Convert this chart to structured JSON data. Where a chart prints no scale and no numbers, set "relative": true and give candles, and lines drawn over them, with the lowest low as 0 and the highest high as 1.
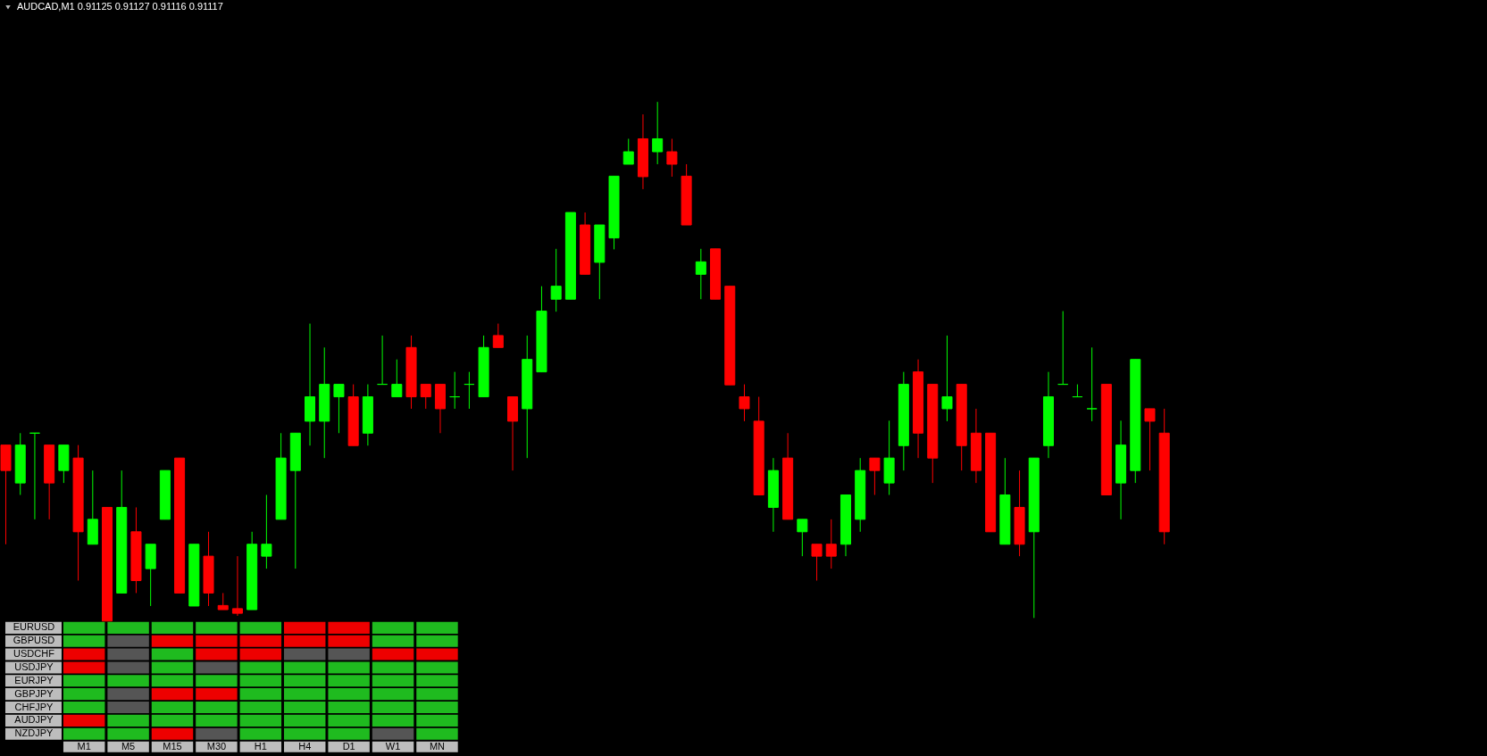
{
  "chart_data": [
    {
      "type": "candlestick",
      "title": "AUDCAD,M1  0.91125 0.91127 0.91116 0.91117",
      "relative": true,
      "colors": [
        "#ff0000",
        "#00ff00",
        "#00ff00",
        "#ff0000",
        "#00ff00",
        "#ff0000",
        "#00ff00",
        "#ff0000",
        "#00ff00",
        "#ff0000",
        "#00ff00",
        "#00ff00",
        "#ff0000",
        "#00ff00",
        "#ff0000",
        "#ff0000",
        "#ff0000",
        "#00ff00",
        "#00ff00",
        "#00ff00",
        "#00ff00",
        "#00ff00",
        "#00ff00",
        "#00ff00",
        "#ff0000",
        "#00ff00",
        "#00ff00",
        "#00ff00",
        "#ff0000",
        "#ff0000",
        "#ff0000",
        "#00ff00",
        "#00ff00",
        "#00ff00",
        "#ff0000",
        "#ff0000",
        "#00ff00",
        "#00ff00",
        "#00ff00",
        "#00ff00",
        "#ff0000",
        "#00ff00",
        "#00ff00",
        "#00ff00",
        "#ff0000",
        "#00ff00",
        "#ff0000",
        "#ff0000",
        "#00ff00",
        "#ff0000",
        "#ff0000",
        "#ff0000",
        "#ff0000",
        "#00ff00",
        "#ff0000",
        "#00ff00",
        "#ff0000",
        "#ff0000",
        "#00ff00",
        "#00ff00",
        "#ff0000",
        "#00ff00",
        "#00ff00",
        "#ff0000",
        "#ff0000",
        "#00ff00",
        "#ff0000",
        "#ff0000",
        "#ff0000",
        "#00ff00",
        "#ff0000",
        "#00ff00",
        "#00ff00",
        "#00ff00",
        "#00ff00",
        "#00ff00",
        "#ff0000",
        "#00ff00",
        "#00ff00",
        "#ff0000",
        "#ff0000"
      ],
      "categories": [
        null,
        null,
        null,
        null,
        null,
        null,
        null,
        null,
        null,
        null,
        null,
        null,
        null,
        null,
        null,
        null,
        null,
        null,
        null,
        null,
        null,
        null,
        null,
        null,
        null,
        null,
        null,
        null,
        null,
        null,
        null,
        null,
        null,
        null,
        null,
        null,
        null,
        null,
        null,
        null,
        null,
        null,
        null,
        null,
        null,
        null,
        null,
        null,
        null,
        null,
        null,
        null,
        null,
        null,
        null,
        null,
        null,
        null,
        null,
        null,
        null,
        null,
        null,
        null,
        null,
        null,
        null,
        null,
        null,
        null,
        null,
        null,
        null,
        null,
        null,
        null,
        null,
        null,
        null,
        null,
        null
      ],
      "ohlc": [
        [
          0.339,
          0.339,
          0.148,
          0.29
        ],
        [
          0.266,
          0.362,
          0.243,
          0.339
        ],
        [
          0.362,
          0.362,
          0.196,
          0.362
        ],
        [
          0.339,
          0.339,
          0.196,
          0.266
        ],
        [
          0.29,
          0.339,
          0.266,
          0.339
        ],
        [
          0.314,
          0.339,
          0.078,
          0.172
        ],
        [
          0.148,
          0.29,
          0.148,
          0.196
        ],
        [
          0.219,
          0.219,
          0.0,
          0.0
        ],
        [
          0.054,
          0.29,
          0.054,
          0.219
        ],
        [
          0.172,
          0.219,
          0.054,
          0.078
        ],
        [
          0.101,
          0.148,
          0.029,
          0.148
        ],
        [
          0.196,
          0.29,
          0.196,
          0.29
        ],
        [
          0.314,
          0.314,
          0.054,
          0.054
        ],
        [
          0.029,
          0.148,
          0.029,
          0.148
        ],
        [
          0.125,
          0.172,
          0.029,
          0.054
        ],
        [
          0.03,
          0.054,
          0.022,
          0.022
        ],
        [
          0.024,
          0.125,
          0.01,
          0.015
        ],
        [
          0.022,
          0.172,
          0.022,
          0.148
        ],
        [
          0.125,
          0.243,
          0.101,
          0.148
        ],
        [
          0.196,
          0.362,
          0.196,
          0.314
        ],
        [
          0.29,
          0.362,
          0.101,
          0.362
        ],
        [
          0.385,
          0.573,
          0.338,
          0.432
        ],
        [
          0.385,
          0.527,
          0.314,
          0.456
        ],
        [
          0.432,
          0.456,
          0.362,
          0.456
        ],
        [
          0.432,
          0.456,
          0.338,
          0.338
        ],
        [
          0.362,
          0.456,
          0.338,
          0.432
        ],
        [
          0.456,
          0.55,
          0.456,
          0.456
        ],
        [
          0.432,
          0.504,
          0.432,
          0.456
        ],
        [
          0.527,
          0.55,
          0.409,
          0.432
        ],
        [
          0.456,
          0.456,
          0.409,
          0.432
        ],
        [
          0.456,
          0.456,
          0.362,
          0.409
        ],
        [
          0.432,
          0.48,
          0.409,
          0.432
        ],
        [
          0.456,
          0.48,
          0.409,
          0.456
        ],
        [
          0.432,
          0.55,
          0.432,
          0.527
        ],
        [
          0.55,
          0.573,
          0.527,
          0.527
        ],
        [
          0.432,
          0.432,
          0.29,
          0.385
        ],
        [
          0.409,
          0.55,
          0.314,
          0.504
        ],
        [
          0.48,
          0.645,
          0.48,
          0.597
        ],
        [
          0.62,
          0.717,
          0.596,
          0.645
        ],
        [
          0.62,
          0.787,
          0.62,
          0.787
        ],
        [
          0.763,
          0.787,
          0.668,
          0.668
        ],
        [
          0.691,
          0.763,
          0.62,
          0.763
        ],
        [
          0.738,
          0.857,
          0.716,
          0.857
        ],
        [
          0.88,
          0.929,
          0.88,
          0.904
        ],
        [
          0.929,
          0.976,
          0.832,
          0.856
        ],
        [
          0.904,
          1.0,
          0.88,
          0.929
        ],
        [
          0.904,
          0.929,
          0.856,
          0.88
        ],
        [
          0.857,
          0.88,
          0.763,
          0.763
        ],
        [
          0.668,
          0.717,
          0.62,
          0.692
        ],
        [
          0.717,
          0.717,
          0.62,
          0.62
        ],
        [
          0.645,
          0.645,
          0.455,
          0.455
        ],
        [
          0.432,
          0.456,
          0.385,
          0.409
        ],
        [
          0.385,
          0.432,
          0.243,
          0.243
        ],
        [
          0.219,
          0.314,
          0.172,
          0.29
        ],
        [
          0.314,
          0.362,
          0.196,
          0.196
        ],
        [
          0.172,
          0.196,
          0.125,
          0.196
        ],
        [
          0.148,
          0.148,
          0.078,
          0.125
        ],
        [
          0.148,
          0.196,
          0.101,
          0.125
        ],
        [
          0.148,
          0.243,
          0.125,
          0.243
        ],
        [
          0.196,
          0.314,
          0.172,
          0.29
        ],
        [
          0.314,
          0.314,
          0.243,
          0.29
        ],
        [
          0.266,
          0.386,
          0.243,
          0.314
        ],
        [
          0.338,
          0.48,
          0.29,
          0.456
        ],
        [
          0.48,
          0.504,
          0.314,
          0.362
        ],
        [
          0.456,
          0.456,
          0.266,
          0.314
        ],
        [
          0.409,
          0.55,
          0.385,
          0.432
        ],
        [
          0.456,
          0.456,
          0.29,
          0.338
        ],
        [
          0.362,
          0.409,
          0.266,
          0.29
        ],
        [
          0.362,
          0.362,
          0.172,
          0.172
        ],
        [
          0.148,
          0.314,
          0.148,
          0.243
        ],
        [
          0.219,
          0.29,
          0.125,
          0.148
        ],
        [
          0.172,
          0.314,
          0.006,
          0.314
        ],
        [
          0.338,
          0.48,
          0.314,
          0.432
        ],
        [
          0.456,
          0.597,
          0.456,
          0.456
        ],
        [
          0.432,
          0.456,
          0.432,
          0.432
        ],
        [
          0.409,
          0.527,
          0.385,
          0.409
        ],
        [
          0.456,
          0.456,
          0.243,
          0.243
        ],
        [
          0.266,
          0.386,
          0.196,
          0.339
        ],
        [
          0.29,
          0.504,
          0.266,
          0.504
        ],
        [
          0.409,
          0.409,
          0.29,
          0.385
        ],
        [
          0.362,
          0.409,
          0.148,
          0.172
        ]
      ]
    },
    {
      "type": "other",
      "categories": [
        "M1",
        "M5",
        "M15",
        "M30",
        "H1",
        "H4",
        "D1",
        "W1",
        "MN"
      ],
      "y_categories": [
        "EURUSD",
        "GBPUSD",
        "USDCHF",
        "USDJPY",
        "EURJPY",
        "GBPJPY",
        "CHFJPY",
        "AUDJPY",
        "NZDJPY"
      ],
      "colors": [
        [
          "#1fbb1f",
          "#1fbb1f",
          "#1fbb1f",
          "#1fbb1f",
          "#1fbb1f",
          "#ee0000",
          "#ee0000",
          "#1fbb1f",
          "#1fbb1f"
        ],
        [
          "#1fbb1f",
          "#555555",
          "#ee0000",
          "#ee0000",
          "#ee0000",
          "#ee0000",
          "#ee0000",
          "#1fbb1f",
          "#1fbb1f"
        ],
        [
          "#ee0000",
          "#555555",
          "#1fbb1f",
          "#ee0000",
          "#ee0000",
          "#555555",
          "#555555",
          "#ee0000",
          "#ee0000"
        ],
        [
          "#ee0000",
          "#555555",
          "#1fbb1f",
          "#555555",
          "#1fbb1f",
          "#1fbb1f",
          "#1fbb1f",
          "#1fbb1f",
          "#1fbb1f"
        ],
        [
          "#1fbb1f",
          "#1fbb1f",
          "#1fbb1f",
          "#1fbb1f",
          "#1fbb1f",
          "#1fbb1f",
          "#1fbb1f",
          "#1fbb1f",
          "#1fbb1f"
        ],
        [
          "#1fbb1f",
          "#555555",
          "#ee0000",
          "#ee0000",
          "#1fbb1f",
          "#1fbb1f",
          "#1fbb1f",
          "#1fbb1f",
          "#1fbb1f"
        ],
        [
          "#1fbb1f",
          "#555555",
          "#1fbb1f",
          "#1fbb1f",
          "#1fbb1f",
          "#1fbb1f",
          "#1fbb1f",
          "#1fbb1f",
          "#1fbb1f"
        ],
        [
          "#ee0000",
          "#1fbb1f",
          "#1fbb1f",
          "#1fbb1f",
          "#1fbb1f",
          "#1fbb1f",
          "#1fbb1f",
          "#1fbb1f",
          "#1fbb1f"
        ],
        [
          "#1fbb1f",
          "#1fbb1f",
          "#ee0000",
          "#555555",
          "#1fbb1f",
          "#1fbb1f",
          "#1fbb1f",
          "#555555",
          "#1fbb1f"
        ]
      ]
    }
  ]
}
